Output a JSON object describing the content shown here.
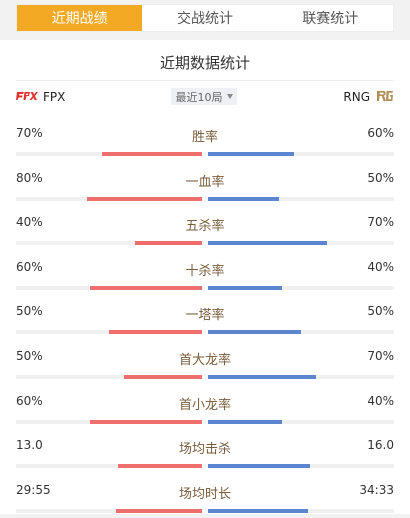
{
  "tabs": [
    {
      "label": "近期战绩",
      "active": true
    },
    {
      "label": "交战统计",
      "active": false
    },
    {
      "label": "联赛统计",
      "active": false
    }
  ],
  "section_title": "近期数据统计",
  "left_team": {
    "name": "FPX",
    "logo_icon": "fpx-logo-icon",
    "bar_color": "#ef6f6c"
  },
  "right_team": {
    "name": "RNG",
    "logo_icon": "rng-logo-icon",
    "bar_color": "#5b86cf"
  },
  "filter": {
    "label": "最近10局"
  },
  "stats": [
    {
      "label": "胜率",
      "left": "70%",
      "right": "60%",
      "left_fill": 0.54,
      "right_fill": 0.46
    },
    {
      "label": "一血率",
      "left": "80%",
      "right": "50%",
      "left_fill": 0.62,
      "right_fill": 0.38
    },
    {
      "label": "五杀率",
      "left": "40%",
      "right": "70%",
      "left_fill": 0.36,
      "right_fill": 0.64
    },
    {
      "label": "十杀率",
      "left": "60%",
      "right": "40%",
      "left_fill": 0.6,
      "right_fill": 0.4
    },
    {
      "label": "一塔率",
      "left": "50%",
      "right": "50%",
      "left_fill": 0.5,
      "right_fill": 0.5
    },
    {
      "label": "首大龙率",
      "left": "50%",
      "right": "70%",
      "left_fill": 0.42,
      "right_fill": 0.58
    },
    {
      "label": "首小龙率",
      "left": "60%",
      "right": "40%",
      "left_fill": 0.6,
      "right_fill": 0.4
    },
    {
      "label": "场均击杀",
      "left": "13.0",
      "right": "16.0",
      "left_fill": 0.45,
      "right_fill": 0.55
    },
    {
      "label": "场均时长",
      "left": "29:55",
      "right": "34:33",
      "left_fill": 0.46,
      "right_fill": 0.54
    }
  ]
}
